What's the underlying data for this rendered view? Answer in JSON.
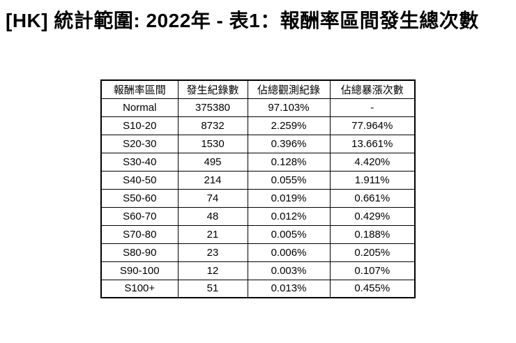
{
  "title": "[HK] 統計範圍: 2022年 - 表1：報酬率區間發生總次數",
  "chart_data": {
    "type": "table",
    "title": "[HK] 統計範圍: 2022年 - 表1：報酬率區間發生總次數",
    "columns": [
      "報酬率區間",
      "發生紀錄數",
      "佔總觀測紀錄",
      "佔總暴漲次數"
    ],
    "rows": [
      [
        "Normal",
        "375380",
        "97.103%",
        "-"
      ],
      [
        "S10-20",
        "8732",
        "2.259%",
        "77.964%"
      ],
      [
        "S20-30",
        "1530",
        "0.396%",
        "13.661%"
      ],
      [
        "S30-40",
        "495",
        "0.128%",
        "4.420%"
      ],
      [
        "S40-50",
        "214",
        "0.055%",
        "1.911%"
      ],
      [
        "S50-60",
        "74",
        "0.019%",
        "0.661%"
      ],
      [
        "S60-70",
        "48",
        "0.012%",
        "0.429%"
      ],
      [
        "S70-80",
        "21",
        "0.005%",
        "0.188%"
      ],
      [
        "S80-90",
        "23",
        "0.006%",
        "0.205%"
      ],
      [
        "S90-100",
        "12",
        "0.003%",
        "0.107%"
      ],
      [
        "S100+",
        "51",
        "0.013%",
        "0.455%"
      ]
    ],
    "layout": {
      "border_color": "#000000",
      "background": "#ffffff",
      "text_color": "#000000"
    }
  }
}
